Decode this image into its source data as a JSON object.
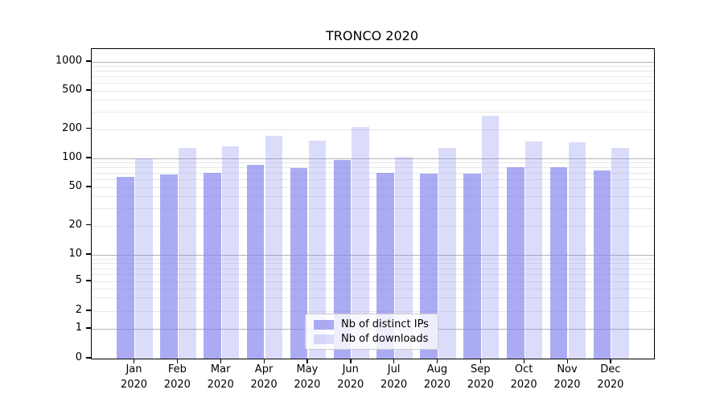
{
  "chart_data": {
    "type": "bar",
    "title": "TRONCO 2020",
    "categories": [
      "Jan",
      "Feb",
      "Mar",
      "Apr",
      "May",
      "Jun",
      "Jul",
      "Aug",
      "Sep",
      "Oct",
      "Nov",
      "Dec"
    ],
    "year": "2020",
    "series": [
      {
        "name": "Nb of distinct IPs",
        "values": [
          64,
          68,
          70,
          85,
          79,
          95,
          70,
          69,
          69,
          80,
          80,
          74
        ],
        "color": "rgba(136,136,238,0.7)"
      },
      {
        "name": "Nb of downloads",
        "values": [
          100,
          128,
          133,
          169,
          151,
          210,
          104,
          127,
          275,
          150,
          146,
          128
        ],
        "color": "rgba(136,136,238,0.3)"
      }
    ],
    "yscale": "symlog",
    "ylim": [
      0,
      1350
    ],
    "y_ticks": [
      "1000",
      "500",
      "200",
      "100",
      "50",
      "20",
      "10",
      "5",
      "2",
      "1",
      "0"
    ],
    "grid": true,
    "legend_position": "lower center",
    "colors": {
      "bar_base": "#8888ee",
      "major_grid": "#b3b3b3",
      "minor_grid": "#e8e8e8",
      "axis": "#000000",
      "legend_border": "#cccccc"
    }
  }
}
